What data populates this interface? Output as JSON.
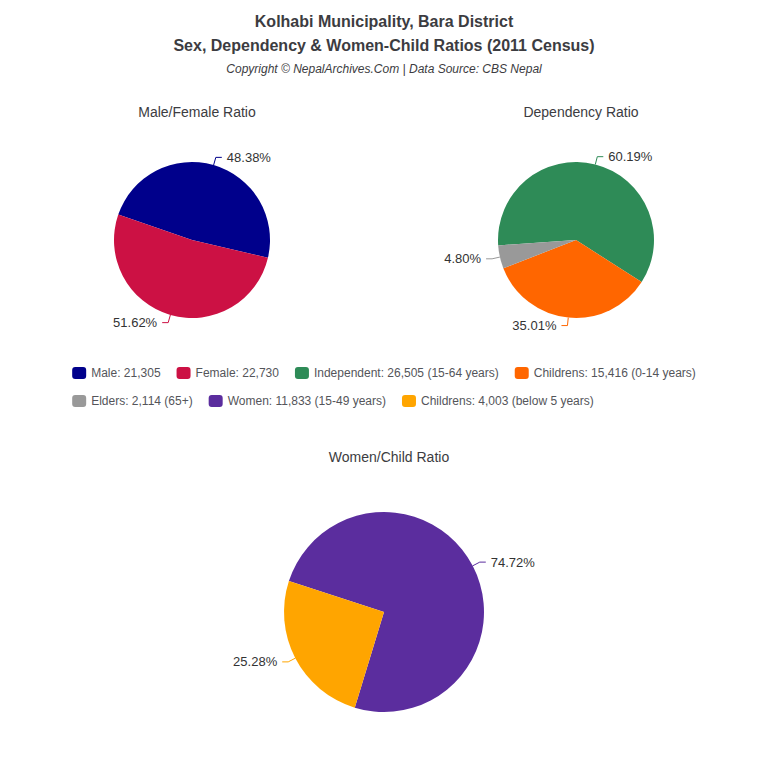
{
  "title": "Kolhabi Municipality, Bara District",
  "subtitle": "Sex, Dependency & Women-Child Ratios (2011 Census)",
  "annotations": [
    "Copyright © NepalArchives.Com | Data Source: CBS Nepal"
  ],
  "legend": "center",
  "chart_data": [
    {
      "type": "pie",
      "title": "Male/Female Ratio",
      "categories": [
        "Male: 21,305",
        "Female: 22,730"
      ],
      "values": [
        48.38,
        51.62
      ],
      "value_labels": [
        "48.38%",
        "51.62%"
      ],
      "colors": [
        "#00008B",
        "#CC1144"
      ],
      "data_labels": true
    },
    {
      "type": "pie",
      "title": "Dependency Ratio",
      "categories": [
        "Independent: 26,505 (15-64 years)",
        "Childrens: 15,416 (0-14 years)",
        "Elders: 2,114 (65+)"
      ],
      "values": [
        60.19,
        35.01,
        4.8
      ],
      "value_labels": [
        "60.19%",
        "35.01%",
        "4.80%"
      ],
      "colors": [
        "#2E8B57",
        "#FF6600",
        "#999999"
      ],
      "data_labels": true
    },
    {
      "type": "pie",
      "title": "Women/Child Ratio",
      "categories": [
        "Women: 11,833 (15-49 years)",
        "Childrens: 4,003 (below 5 years)"
      ],
      "values": [
        74.72,
        25.28
      ],
      "value_labels": [
        "74.72%",
        "25.28%"
      ],
      "colors": [
        "#5B2D9E",
        "#FFA500"
      ],
      "data_labels": true
    }
  ]
}
